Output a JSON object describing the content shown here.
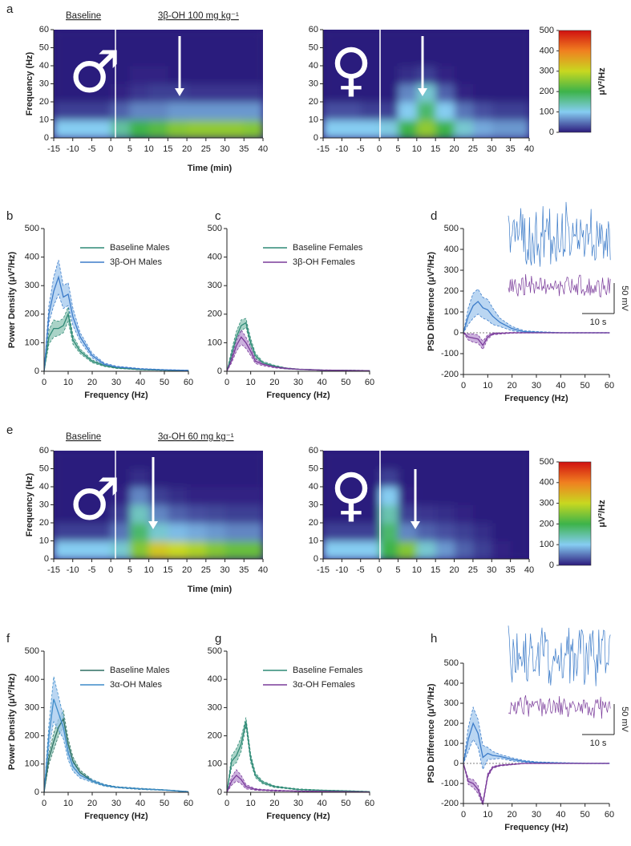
{
  "chart_data": [
    {
      "type": "heatmap",
      "panel": "a",
      "symbol": "♂",
      "annotations": [
        "Baseline",
        "3β-OH 100 mg kg⁻¹"
      ],
      "xlabel": "Time (min)",
      "ylabel": "Frequency (Hz)",
      "xbins": [
        -15,
        -10,
        -5,
        0,
        5,
        10,
        15,
        20,
        25,
        30,
        35,
        40
      ],
      "ybins": [
        0,
        10,
        20,
        30,
        40,
        50,
        60
      ],
      "values": [
        [
          100,
          100,
          100,
          150,
          200,
          220,
          250,
          260,
          260,
          260,
          250
        ],
        [
          20,
          20,
          20,
          40,
          60,
          60,
          70,
          70,
          70,
          70,
          70
        ],
        [
          0,
          0,
          0,
          5,
          15,
          20,
          20,
          15,
          15,
          15,
          15
        ],
        [
          0,
          0,
          0,
          0,
          5,
          5,
          0,
          0,
          0,
          0,
          0
        ],
        [
          0,
          0,
          0,
          0,
          0,
          0,
          0,
          0,
          0,
          0,
          0
        ],
        [
          0,
          0,
          0,
          0,
          0,
          0,
          0,
          0,
          0,
          0,
          0
        ]
      ],
      "xlim": [
        -15,
        40
      ],
      "ylim": [
        0,
        60
      ],
      "xticks": [
        -15,
        -10,
        -5,
        0,
        5,
        10,
        15,
        20,
        25,
        30,
        35,
        40
      ],
      "yticks": [
        0,
        10,
        20,
        30,
        40,
        50,
        60
      ],
      "zlim": [
        0,
        500
      ],
      "colorscale": [
        "#2c1b7d",
        "#86cdf2",
        "#3db34a",
        "#c8d820",
        "#f08020",
        "#d01010"
      ]
    },
    {
      "type": "heatmap",
      "symbol": "♀",
      "xbins": [
        -15,
        -10,
        -5,
        0,
        5,
        10,
        15,
        20,
        25,
        30,
        35,
        40
      ],
      "ybins": [
        0,
        10,
        20,
        30,
        40,
        50,
        60
      ],
      "values": [
        [
          100,
          100,
          100,
          110,
          200,
          260,
          200,
          120,
          80,
          70,
          70
        ],
        [
          30,
          30,
          20,
          20,
          100,
          180,
          100,
          50,
          30,
          20,
          20
        ],
        [
          0,
          0,
          0,
          0,
          60,
          120,
          40,
          5,
          0,
          0,
          0
        ],
        [
          0,
          0,
          0,
          0,
          10,
          20,
          5,
          0,
          0,
          0,
          0
        ],
        [
          0,
          0,
          0,
          0,
          0,
          0,
          0,
          0,
          0,
          0,
          0
        ],
        [
          0,
          0,
          0,
          0,
          0,
          0,
          0,
          0,
          0,
          0,
          0
        ]
      ],
      "xlim": [
        -15,
        40
      ],
      "ylim": [
        0,
        60
      ],
      "xticks": [
        -15,
        -10,
        -5,
        0,
        5,
        10,
        15,
        20,
        25,
        30,
        35,
        40
      ],
      "yticks": [
        0,
        10,
        20,
        30,
        40,
        50,
        60
      ],
      "zlim": [
        0,
        500
      ],
      "colorscale": [
        "#2c1b7d",
        "#86cdf2",
        "#3db34a",
        "#c8d820",
        "#f08020",
        "#d01010"
      ],
      "colorbar": true,
      "zticks": [
        0,
        100,
        200,
        300,
        400,
        500
      ],
      "zlabel": "μV²/Hz"
    },
    {
      "type": "line",
      "panel": "b",
      "xlabel": "Frequency (Hz)",
      "ylabel": "Power Density (μV²/Hz)",
      "x": [
        0,
        2,
        4,
        6,
        8,
        10,
        12,
        15,
        20,
        25,
        30,
        40,
        50,
        60
      ],
      "series": [
        {
          "name": "Baseline Males",
          "color": "#2f8a76",
          "fill": "#8cc4b4",
          "values": [
            0,
            120,
            150,
            150,
            160,
            200,
            110,
            70,
            35,
            20,
            12,
            6,
            4,
            2
          ],
          "sem": [
            0,
            25,
            30,
            25,
            25,
            25,
            15,
            8,
            5,
            3,
            2,
            1,
            1,
            1
          ]
        },
        {
          "name": "3β-OH Males",
          "color": "#3d7cc9",
          "fill": "#a3c8ee",
          "values": [
            0,
            200,
            280,
            330,
            260,
            270,
            190,
            120,
            55,
            25,
            15,
            8,
            5,
            3
          ],
          "sem": [
            0,
            30,
            50,
            60,
            40,
            40,
            30,
            15,
            8,
            4,
            3,
            2,
            1,
            1
          ]
        }
      ],
      "xlim": [
        0,
        60
      ],
      "ylim": [
        0,
        500
      ],
      "xticks": [
        0,
        10,
        20,
        30,
        40,
        50,
        60
      ],
      "yticks": [
        0,
        100,
        200,
        300,
        400,
        500
      ],
      "legend": "upper right"
    },
    {
      "type": "line",
      "panel": "c",
      "xlabel": "Frequency (Hz)",
      "x": [
        0,
        2,
        4,
        6,
        8,
        10,
        12,
        15,
        20,
        25,
        30,
        40,
        50,
        60
      ],
      "series": [
        {
          "name": "Baseline Females",
          "color": "#2f8a76",
          "fill": "#8cc4b4",
          "values": [
            0,
            60,
            120,
            160,
            170,
            100,
            55,
            30,
            18,
            10,
            7,
            4,
            3,
            2
          ],
          "sem": [
            0,
            15,
            20,
            20,
            15,
            15,
            8,
            5,
            3,
            2,
            1,
            1,
            1,
            1
          ]
        },
        {
          "name": "3β-OH Females",
          "color": "#7a3b9a",
          "fill": "#b995d2",
          "values": [
            0,
            40,
            90,
            120,
            100,
            70,
            35,
            25,
            15,
            10,
            7,
            4,
            3,
            2
          ],
          "sem": [
            0,
            10,
            20,
            25,
            20,
            15,
            8,
            5,
            3,
            2,
            1,
            1,
            1,
            1
          ]
        }
      ],
      "xlim": [
        0,
        60
      ],
      "ylim": [
        0,
        500
      ],
      "xticks": [
        0,
        10,
        20,
        30,
        40,
        50,
        60
      ],
      "yticks": [
        0,
        100,
        200,
        300,
        400,
        500
      ],
      "legend": "upper right"
    },
    {
      "type": "line",
      "panel": "d",
      "xlabel": "Frequency (Hz)",
      "ylabel": "PSD Difference (μV²/Hz)",
      "x": [
        0,
        2,
        4,
        6,
        8,
        10,
        12,
        15,
        20,
        25,
        30,
        40,
        50,
        60
      ],
      "series": [
        {
          "color": "#3d7cc9",
          "fill": "#a3c8ee",
          "values": [
            0,
            80,
            130,
            150,
            120,
            110,
            80,
            50,
            20,
            5,
            3,
            0,
            0,
            0
          ],
          "sem": [
            0,
            40,
            60,
            60,
            50,
            50,
            40,
            20,
            10,
            5,
            3,
            1,
            1,
            1
          ]
        },
        {
          "color": "#7a3b9a",
          "fill": "#b995d2",
          "values": [
            0,
            -20,
            -25,
            -30,
            -60,
            -20,
            -5,
            -3,
            0,
            0,
            0,
            0,
            0,
            0
          ],
          "sem": [
            0,
            15,
            20,
            20,
            20,
            10,
            5,
            3,
            2,
            1,
            1,
            1,
            1,
            1
          ]
        }
      ],
      "xlim": [
        0,
        60
      ],
      "ylim": [
        -200,
        500
      ],
      "xticks": [
        0,
        10,
        20,
        30,
        40,
        50,
        60
      ],
      "yticks": [
        -200,
        -100,
        0,
        100,
        200,
        300,
        400,
        500
      ],
      "zero_line": true,
      "inset": {
        "scale_y": "50 mV",
        "scale_x": "10 s"
      }
    },
    {
      "type": "heatmap",
      "panel": "e",
      "symbol": "♂",
      "annotations": [
        "Baseline",
        "3α-OH 60 mg kg⁻¹"
      ],
      "xlabel": "Time (min)",
      "ylabel": "Frequency (Hz)",
      "xbins": [
        -15,
        -10,
        -5,
        0,
        5,
        10,
        15,
        20,
        25,
        30,
        35,
        40
      ],
      "ybins": [
        0,
        10,
        20,
        30,
        40,
        50,
        60
      ],
      "values": [
        [
          100,
          100,
          100,
          120,
          250,
          320,
          300,
          280,
          250,
          230,
          230
        ],
        [
          20,
          20,
          20,
          50,
          180,
          120,
          90,
          80,
          70,
          60,
          60
        ],
        [
          0,
          0,
          0,
          20,
          130,
          60,
          40,
          30,
          25,
          20,
          20
        ],
        [
          0,
          0,
          0,
          5,
          60,
          20,
          10,
          5,
          5,
          5,
          5
        ],
        [
          0,
          0,
          0,
          0,
          10,
          0,
          0,
          0,
          0,
          0,
          0
        ],
        [
          0,
          0,
          0,
          0,
          0,
          0,
          0,
          0,
          0,
          0,
          0
        ]
      ],
      "xlim": [
        -15,
        40
      ],
      "ylim": [
        0,
        60
      ],
      "xticks": [
        -15,
        -10,
        -5,
        0,
        5,
        10,
        15,
        20,
        25,
        30,
        35,
        40
      ],
      "yticks": [
        0,
        10,
        20,
        30,
        40,
        50,
        60
      ],
      "zlim": [
        0,
        500
      ],
      "colorscale": [
        "#2c1b7d",
        "#86cdf2",
        "#3db34a",
        "#c8d820",
        "#f08020",
        "#d01010"
      ]
    },
    {
      "type": "heatmap",
      "symbol": "♀",
      "xbins": [
        -15,
        -10,
        -5,
        0,
        5,
        10,
        15,
        20,
        25,
        30,
        35,
        40
      ],
      "ybins": [
        0,
        10,
        20,
        30,
        40,
        50,
        60
      ],
      "values": [
        [
          100,
          100,
          100,
          200,
          250,
          120,
          70,
          40,
          20,
          5,
          0
        ],
        [
          20,
          20,
          20,
          180,
          60,
          40,
          30,
          20,
          10,
          0,
          0
        ],
        [
          0,
          0,
          0,
          140,
          20,
          15,
          10,
          5,
          0,
          0,
          0
        ],
        [
          0,
          0,
          0,
          100,
          5,
          0,
          0,
          0,
          0,
          0,
          0
        ],
        [
          0,
          0,
          0,
          20,
          0,
          0,
          0,
          0,
          0,
          0,
          0
        ],
        [
          0,
          0,
          0,
          0,
          0,
          0,
          0,
          0,
          0,
          0,
          0
        ]
      ],
      "xlim": [
        -15,
        40
      ],
      "ylim": [
        0,
        60
      ],
      "xticks": [
        -15,
        -10,
        -5,
        0,
        5,
        10,
        15,
        20,
        25,
        30,
        35,
        40
      ],
      "yticks": [
        0,
        10,
        20,
        30,
        40,
        50,
        60
      ],
      "zlim": [
        0,
        500
      ],
      "colorscale": [
        "#2c1b7d",
        "#86cdf2",
        "#3db34a",
        "#c8d820",
        "#f08020",
        "#d01010"
      ],
      "colorbar": true,
      "zticks": [
        0,
        100,
        200,
        300,
        400,
        500
      ],
      "zlabel": "μV²/Hz"
    },
    {
      "type": "line",
      "panel": "f",
      "xlabel": "Frequency (Hz)",
      "ylabel": "Power Density (μV²/Hz)",
      "x": [
        0,
        2,
        4,
        6,
        8,
        10,
        12,
        15,
        20,
        25,
        30,
        40,
        50,
        60
      ],
      "series": [
        {
          "name": "Baseline Males",
          "color": "#2f6f62",
          "fill": "#8cc4b4",
          "values": [
            0,
            120,
            180,
            230,
            260,
            170,
            110,
            70,
            40,
            25,
            18,
            12,
            8,
            2
          ],
          "sem": [
            0,
            20,
            30,
            30,
            30,
            20,
            15,
            8,
            5,
            3,
            2,
            2,
            1,
            1
          ]
        },
        {
          "name": "3α-OH Males",
          "color": "#3d8cc9",
          "fill": "#a3c8ee",
          "values": [
            0,
            200,
            330,
            280,
            230,
            140,
            90,
            60,
            40,
            25,
            18,
            12,
            8,
            2
          ],
          "sem": [
            0,
            40,
            80,
            60,
            40,
            25,
            15,
            10,
            5,
            3,
            2,
            2,
            1,
            1
          ]
        }
      ],
      "xlim": [
        0,
        60
      ],
      "ylim": [
        0,
        500
      ],
      "xticks": [
        0,
        10,
        20,
        30,
        40,
        50,
        60
      ],
      "yticks": [
        0,
        100,
        200,
        300,
        400,
        500
      ],
      "legend": "upper right"
    },
    {
      "type": "line",
      "panel": "g",
      "xlabel": "Frequency (Hz)",
      "x": [
        0,
        2,
        4,
        6,
        8,
        10,
        12,
        15,
        20,
        25,
        30,
        40,
        50,
        60
      ],
      "series": [
        {
          "name": "Baseline Females",
          "color": "#2f8a76",
          "fill": "#8cc4b4",
          "values": [
            0,
            110,
            130,
            170,
            250,
            120,
            60,
            35,
            20,
            15,
            10,
            7,
            5,
            2
          ],
          "sem": [
            0,
            20,
            25,
            25,
            15,
            15,
            8,
            5,
            3,
            2,
            2,
            1,
            1,
            1
          ]
        },
        {
          "name": "3α-OH Females",
          "color": "#7a3b9a",
          "fill": "#b995d2",
          "values": [
            0,
            40,
            60,
            45,
            20,
            15,
            10,
            8,
            6,
            5,
            4,
            3,
            2,
            1
          ],
          "sem": [
            0,
            15,
            20,
            15,
            8,
            5,
            3,
            2,
            2,
            1,
            1,
            1,
            1,
            1
          ]
        }
      ],
      "xlim": [
        0,
        60
      ],
      "ylim": [
        0,
        500
      ],
      "xticks": [
        0,
        10,
        20,
        30,
        40,
        50,
        60
      ],
      "yticks": [
        0,
        100,
        200,
        300,
        400,
        500
      ],
      "legend": "upper right"
    },
    {
      "type": "line",
      "panel": "h",
      "xlabel": "Frequency (Hz)",
      "ylabel": "PSD Difference (μV²/Hz)",
      "x": [
        0,
        2,
        4,
        6,
        8,
        10,
        12,
        15,
        20,
        25,
        30,
        40,
        50,
        60
      ],
      "series": [
        {
          "color": "#3d7cc9",
          "fill": "#a3c8ee",
          "values": [
            0,
            120,
            200,
            150,
            30,
            50,
            40,
            35,
            20,
            10,
            5,
            2,
            0,
            0
          ],
          "sem": [
            0,
            60,
            80,
            70,
            60,
            30,
            20,
            10,
            8,
            5,
            3,
            2,
            1,
            1
          ]
        },
        {
          "color": "#7a3b9a",
          "fill": "#b995d2",
          "values": [
            0,
            -90,
            -100,
            -130,
            -200,
            -60,
            -20,
            -10,
            -5,
            0,
            0,
            0,
            0,
            0
          ],
          "sem": [
            0,
            15,
            20,
            20,
            10,
            10,
            5,
            3,
            2,
            1,
            1,
            1,
            1,
            1
          ]
        }
      ],
      "xlim": [
        0,
        60
      ],
      "ylim": [
        -200,
        500
      ],
      "xticks": [
        0,
        10,
        20,
        30,
        40,
        50,
        60
      ],
      "yticks": [
        -200,
        -100,
        0,
        100,
        200,
        300,
        400,
        500
      ],
      "zero_line": true,
      "inset": {
        "scale_y": "50 mV",
        "scale_x": "10 s"
      }
    }
  ]
}
